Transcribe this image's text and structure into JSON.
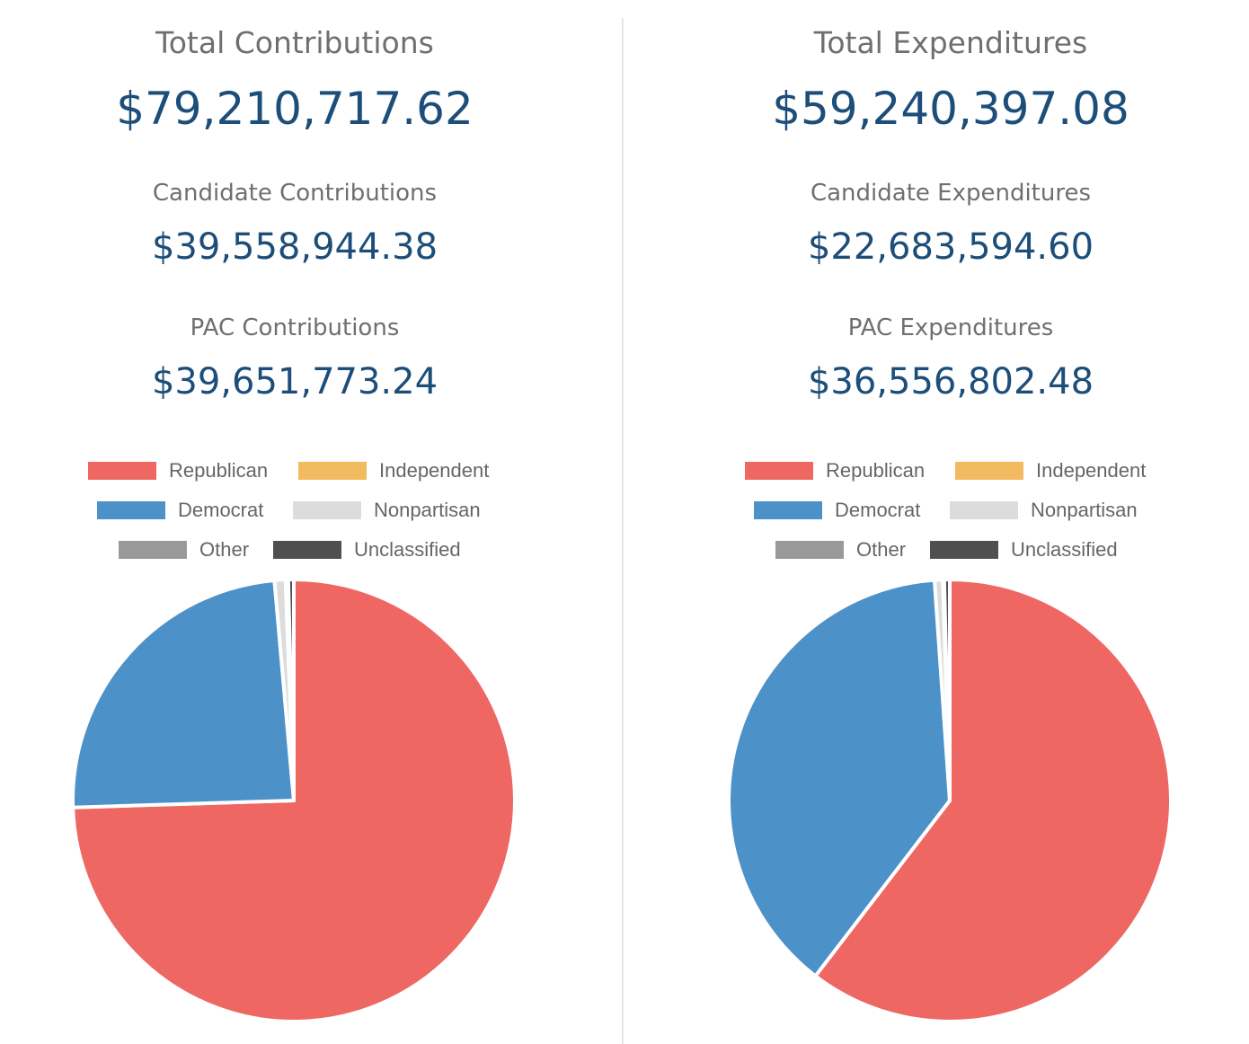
{
  "contributions": {
    "total_title": "Total Contributions",
    "total_value": "$79,210,717.62",
    "candidate_title": "Candidate Contributions",
    "candidate_value": "$39,558,944.38",
    "pac_title": "PAC Contributions",
    "pac_value": "$39,651,773.24"
  },
  "expenditures": {
    "total_title": "Total Expenditures",
    "total_value": "$59,240,397.08",
    "candidate_title": "Candidate Expenditures",
    "candidate_value": "$22,683,594.60",
    "pac_title": "PAC Expenditures",
    "pac_value": "$36,556,802.48"
  },
  "legend": [
    {
      "label": "Republican",
      "color": "#ee6762"
    },
    {
      "label": "Independent",
      "color": "#f2bb5f"
    },
    {
      "label": "Democrat",
      "color": "#4d91c9"
    },
    {
      "label": "Nonpartisan",
      "color": "#dcdcdc"
    },
    {
      "label": "Other",
      "color": "#999999"
    },
    {
      "label": "Unclassified",
      "color": "#4f4f4f"
    }
  ],
  "chart_data": [
    {
      "type": "pie",
      "title": "",
      "legend_position": "top",
      "slices": [
        {
          "label": "Republican",
          "value": 74.5,
          "color": "#ee6762"
        },
        {
          "label": "Independent",
          "value": 0.0,
          "color": "#f2bb5f"
        },
        {
          "label": "Democrat",
          "value": 24.1,
          "color": "#4d91c9"
        },
        {
          "label": "Nonpartisan",
          "value": 0.8,
          "color": "#dcdcdc"
        },
        {
          "label": "Other",
          "value": 0.2,
          "color": "#999999"
        },
        {
          "label": "Unclassified",
          "value": 0.4,
          "color": "#4f4f4f"
        }
      ]
    },
    {
      "type": "pie",
      "title": "",
      "legend_position": "top",
      "slices": [
        {
          "label": "Republican",
          "value": 60.4,
          "color": "#ee6762"
        },
        {
          "label": "Independent",
          "value": 0.0,
          "color": "#f2bb5f"
        },
        {
          "label": "Democrat",
          "value": 38.5,
          "color": "#4d91c9"
        },
        {
          "label": "Nonpartisan",
          "value": 0.6,
          "color": "#dcdcdc"
        },
        {
          "label": "Other",
          "value": 0.1,
          "color": "#999999"
        },
        {
          "label": "Unclassified",
          "value": 0.4,
          "color": "#4f4f4f"
        }
      ]
    }
  ]
}
